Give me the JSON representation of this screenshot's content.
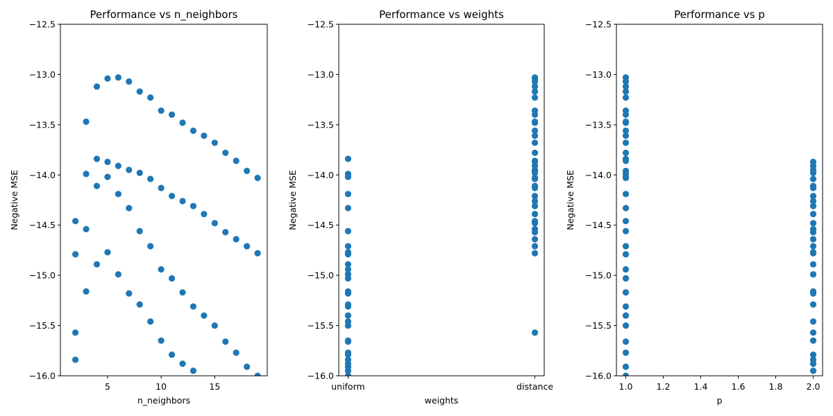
{
  "chart_data": [
    {
      "type": "scatter",
      "title": "Performance vs n_neighbors",
      "xlabel": "n_neighbors",
      "ylabel": "Negative MSE",
      "xlim": [
        0.6,
        19.9
      ],
      "ylim": [
        -16.0,
        -12.5
      ],
      "xticks": [
        5,
        10,
        15
      ],
      "yticks": [
        -16.0,
        -15.5,
        -15.0,
        -14.5,
        -14.0,
        -13.5,
        -13.0,
        -12.5
      ],
      "grid": false,
      "color": "#1f77b4",
      "points": [
        [
          2,
          -14.46
        ],
        [
          2,
          -14.79
        ],
        [
          2,
          -15.57
        ],
        [
          2,
          -15.84
        ],
        [
          3,
          -13.47
        ],
        [
          3,
          -13.99
        ],
        [
          3,
          -14.54
        ],
        [
          3,
          -15.16
        ],
        [
          4,
          -13.12
        ],
        [
          4,
          -13.84
        ],
        [
          4,
          -14.11
        ],
        [
          4,
          -14.89
        ],
        [
          5,
          -13.04
        ],
        [
          5,
          -13.87
        ],
        [
          5,
          -14.02
        ],
        [
          5,
          -14.77
        ],
        [
          6,
          -13.03
        ],
        [
          6,
          -13.91
        ],
        [
          6,
          -14.19
        ],
        [
          6,
          -14.99
        ],
        [
          7,
          -13.07
        ],
        [
          7,
          -13.95
        ],
        [
          7,
          -14.33
        ],
        [
          7,
          -15.18
        ],
        [
          8,
          -13.17
        ],
        [
          8,
          -13.98
        ],
        [
          8,
          -14.56
        ],
        [
          8,
          -15.29
        ],
        [
          9,
          -13.23
        ],
        [
          9,
          -14.04
        ],
        [
          9,
          -14.71
        ],
        [
          9,
          -15.46
        ],
        [
          10,
          -13.36
        ],
        [
          10,
          -14.13
        ],
        [
          10,
          -14.94
        ],
        [
          10,
          -15.65
        ],
        [
          11,
          -13.4
        ],
        [
          11,
          -14.21
        ],
        [
          11,
          -15.03
        ],
        [
          11,
          -15.79
        ],
        [
          12,
          -13.48
        ],
        [
          12,
          -14.26
        ],
        [
          12,
          -15.17
        ],
        [
          12,
          -15.88
        ],
        [
          13,
          -13.56
        ],
        [
          13,
          -14.31
        ],
        [
          13,
          -15.31
        ],
        [
          13,
          -15.95
        ],
        [
          14,
          -13.61
        ],
        [
          14,
          -14.39
        ],
        [
          14,
          -15.4
        ],
        [
          15,
          -13.68
        ],
        [
          15,
          -14.48
        ],
        [
          15,
          -15.5
        ],
        [
          16,
          -13.78
        ],
        [
          16,
          -14.57
        ],
        [
          16,
          -15.66
        ],
        [
          17,
          -13.86
        ],
        [
          17,
          -14.64
        ],
        [
          17,
          -15.77
        ],
        [
          18,
          -13.96
        ],
        [
          18,
          -14.71
        ],
        [
          18,
          -15.91
        ],
        [
          19,
          -14.03
        ],
        [
          19,
          -14.78
        ],
        [
          19,
          -16.0
        ]
      ]
    },
    {
      "type": "scatter",
      "title": "Performance vs weights",
      "xlabel": "weights",
      "ylabel": "Negative MSE",
      "categories": [
        "uniform",
        "distance"
      ],
      "xlim": [
        -0.05,
        1.05
      ],
      "ylim": [
        -16.0,
        -12.5
      ],
      "yticks": [
        -16.0,
        -15.5,
        -15.0,
        -14.5,
        -14.0,
        -13.5,
        -13.0,
        -12.5
      ],
      "grid": false,
      "color": "#1f77b4",
      "points": [
        [
          0,
          -13.84
        ],
        [
          0,
          -13.99
        ],
        [
          0,
          -14.02
        ],
        [
          0,
          -14.19
        ],
        [
          0,
          -14.33
        ],
        [
          0,
          -14.56
        ],
        [
          0,
          -14.71
        ],
        [
          0,
          -14.77
        ],
        [
          0,
          -14.79
        ],
        [
          0,
          -14.89
        ],
        [
          0,
          -14.94
        ],
        [
          0,
          -14.99
        ],
        [
          0,
          -15.03
        ],
        [
          0,
          -15.16
        ],
        [
          0,
          -15.18
        ],
        [
          0,
          -15.29
        ],
        [
          0,
          -15.31
        ],
        [
          0,
          -15.4
        ],
        [
          0,
          -15.46
        ],
        [
          0,
          -15.5
        ],
        [
          0,
          -15.65
        ],
        [
          0,
          -15.66
        ],
        [
          0,
          -15.77
        ],
        [
          0,
          -15.79
        ],
        [
          0,
          -15.84
        ],
        [
          0,
          -15.88
        ],
        [
          0,
          -15.91
        ],
        [
          0,
          -15.95
        ],
        [
          0,
          -16.0
        ],
        [
          1,
          -13.03
        ],
        [
          1,
          -13.04
        ],
        [
          1,
          -13.07
        ],
        [
          1,
          -13.12
        ],
        [
          1,
          -13.17
        ],
        [
          1,
          -13.23
        ],
        [
          1,
          -13.36
        ],
        [
          1,
          -13.4
        ],
        [
          1,
          -13.47
        ],
        [
          1,
          -13.48
        ],
        [
          1,
          -13.56
        ],
        [
          1,
          -13.61
        ],
        [
          1,
          -13.68
        ],
        [
          1,
          -13.78
        ],
        [
          1,
          -13.86
        ],
        [
          1,
          -13.87
        ],
        [
          1,
          -13.91
        ],
        [
          1,
          -13.95
        ],
        [
          1,
          -13.96
        ],
        [
          1,
          -13.98
        ],
        [
          1,
          -14.03
        ],
        [
          1,
          -14.04
        ],
        [
          1,
          -14.11
        ],
        [
          1,
          -14.13
        ],
        [
          1,
          -14.21
        ],
        [
          1,
          -14.26
        ],
        [
          1,
          -14.31
        ],
        [
          1,
          -14.39
        ],
        [
          1,
          -14.46
        ],
        [
          1,
          -14.48
        ],
        [
          1,
          -14.54
        ],
        [
          1,
          -14.57
        ],
        [
          1,
          -14.64
        ],
        [
          1,
          -14.71
        ],
        [
          1,
          -14.78
        ],
        [
          1,
          -15.57
        ]
      ]
    },
    {
      "type": "scatter",
      "title": "Performance vs p",
      "xlabel": "p",
      "ylabel": "Negative MSE",
      "xlim": [
        0.95,
        2.05
      ],
      "ylim": [
        -16.0,
        -12.5
      ],
      "xticks": [
        1.0,
        1.2,
        1.4,
        1.6,
        1.8,
        2.0
      ],
      "yticks": [
        -16.0,
        -15.5,
        -15.0,
        -14.5,
        -14.0,
        -13.5,
        -13.0,
        -12.5
      ],
      "grid": false,
      "color": "#1f77b4",
      "points": [
        [
          1,
          -13.03
        ],
        [
          1,
          -13.07
        ],
        [
          1,
          -13.12
        ],
        [
          1,
          -13.17
        ],
        [
          1,
          -13.23
        ],
        [
          1,
          -13.36
        ],
        [
          1,
          -13.4
        ],
        [
          1,
          -13.47
        ],
        [
          1,
          -13.48
        ],
        [
          1,
          -13.56
        ],
        [
          1,
          -13.61
        ],
        [
          1,
          -13.68
        ],
        [
          1,
          -13.78
        ],
        [
          1,
          -13.84
        ],
        [
          1,
          -13.86
        ],
        [
          1,
          -13.96
        ],
        [
          1,
          -13.99
        ],
        [
          1,
          -14.02
        ],
        [
          1,
          -14.03
        ],
        [
          1,
          -14.19
        ],
        [
          1,
          -14.33
        ],
        [
          1,
          -14.46
        ],
        [
          1,
          -14.56
        ],
        [
          1,
          -14.71
        ],
        [
          1,
          -14.79
        ],
        [
          1,
          -14.94
        ],
        [
          1,
          -15.03
        ],
        [
          1,
          -15.17
        ],
        [
          1,
          -15.31
        ],
        [
          1,
          -15.4
        ],
        [
          1,
          -15.5
        ],
        [
          1,
          -15.66
        ],
        [
          1,
          -15.77
        ],
        [
          1,
          -15.91
        ],
        [
          1,
          -16.0
        ],
        [
          2,
          -13.87
        ],
        [
          2,
          -13.91
        ],
        [
          2,
          -13.95
        ],
        [
          2,
          -13.98
        ],
        [
          2,
          -14.04
        ],
        [
          2,
          -14.11
        ],
        [
          2,
          -14.13
        ],
        [
          2,
          -14.21
        ],
        [
          2,
          -14.26
        ],
        [
          2,
          -14.31
        ],
        [
          2,
          -14.39
        ],
        [
          2,
          -14.48
        ],
        [
          2,
          -14.54
        ],
        [
          2,
          -14.57
        ],
        [
          2,
          -14.64
        ],
        [
          2,
          -14.71
        ],
        [
          2,
          -14.77
        ],
        [
          2,
          -14.78
        ],
        [
          2,
          -14.89
        ],
        [
          2,
          -14.99
        ],
        [
          2,
          -15.16
        ],
        [
          2,
          -15.18
        ],
        [
          2,
          -15.29
        ],
        [
          2,
          -15.46
        ],
        [
          2,
          -15.57
        ],
        [
          2,
          -15.65
        ],
        [
          2,
          -15.79
        ],
        [
          2,
          -15.84
        ],
        [
          2,
          -15.88
        ],
        [
          2,
          -15.95
        ]
      ]
    }
  ]
}
